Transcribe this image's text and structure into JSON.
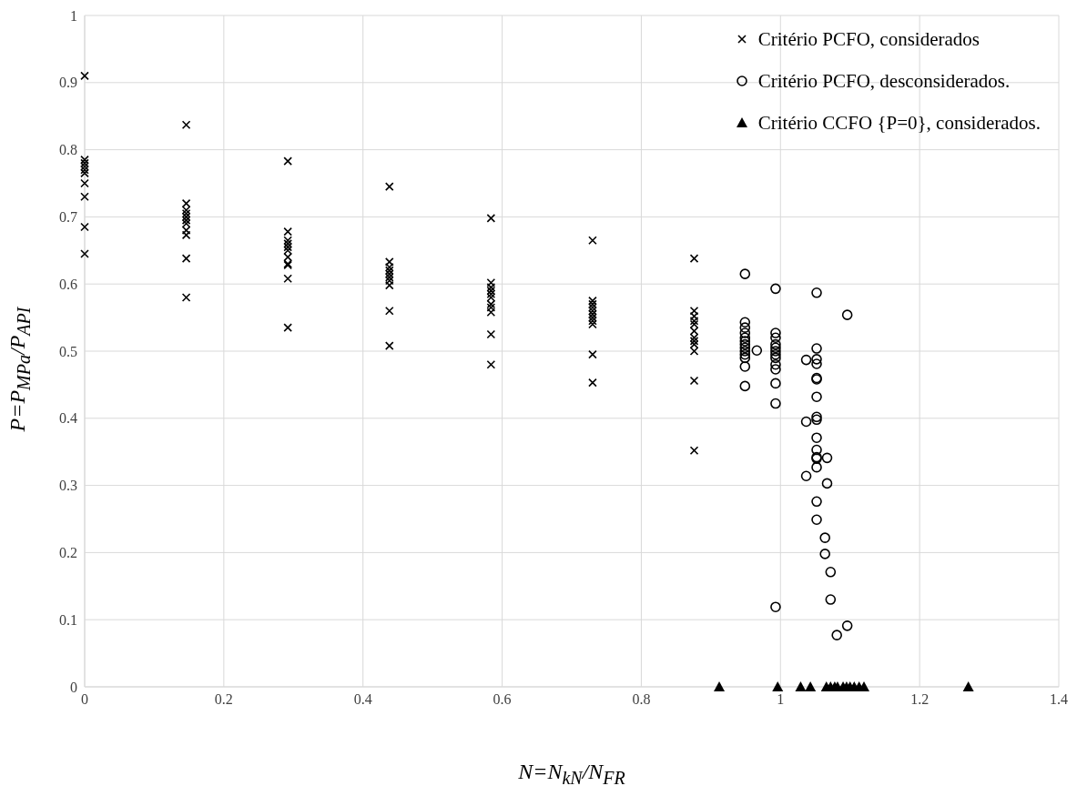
{
  "chart_data": {
    "type": "scatter",
    "xlabel": "N=N$_{kN}$/N$_{FR}$",
    "ylabel": "P=P$_{MPa}$/P$_{API}$",
    "xlim": [
      0,
      1.4
    ],
    "xticks": [
      0,
      0.2,
      0.4,
      0.6,
      0.8,
      1,
      1.2,
      1.4
    ],
    "ylim": [
      0,
      1
    ],
    "yticks": [
      0,
      0.1,
      0.2,
      0.3,
      0.4,
      0.5,
      0.6,
      0.7,
      0.8,
      0.9,
      1
    ],
    "grid": true,
    "legend": "top right",
    "series": [
      {
        "name": "Critério PCFO, considerados",
        "color": "#000000",
        "marker": "cross",
        "x": [
          0,
          0,
          0,
          0,
          0,
          0,
          0,
          0,
          0,
          0,
          0.146,
          0.146,
          0.146,
          0.146,
          0.146,
          0.146,
          0.146,
          0.146,
          0.146,
          0.146,
          0.146,
          0.292,
          0.292,
          0.292,
          0.292,
          0.292,
          0.292,
          0.292,
          0.292,
          0.292,
          0.292,
          0.292,
          0.438,
          0.438,
          0.438,
          0.438,
          0.438,
          0.438,
          0.438,
          0.438,
          0.438,
          0.438,
          0.584,
          0.584,
          0.584,
          0.584,
          0.584,
          0.584,
          0.584,
          0.584,
          0.584,
          0.584,
          0.584,
          0.73,
          0.73,
          0.73,
          0.73,
          0.73,
          0.73,
          0.73,
          0.73,
          0.73,
          0.73,
          0.73,
          0.876,
          0.876,
          0.876,
          0.876,
          0.876,
          0.876,
          0.876,
          0.876,
          0.876,
          0.876,
          0.876,
          0.876
        ],
        "values": [
          0.91,
          0.785,
          0.78,
          0.775,
          0.77,
          0.765,
          0.75,
          0.73,
          0.685,
          0.645,
          0.837,
          0.72,
          0.71,
          0.705,
          0.7,
          0.695,
          0.69,
          0.68,
          0.673,
          0.638,
          0.58,
          0.783,
          0.678,
          0.665,
          0.66,
          0.655,
          0.65,
          0.64,
          0.63,
          0.628,
          0.608,
          0.535,
          0.745,
          0.633,
          0.625,
          0.62,
          0.615,
          0.61,
          0.605,
          0.598,
          0.56,
          0.508,
          0.698,
          0.602,
          0.595,
          0.59,
          0.585,
          0.58,
          0.57,
          0.565,
          0.558,
          0.525,
          0.48,
          0.665,
          0.575,
          0.57,
          0.565,
          0.56,
          0.555,
          0.55,
          0.545,
          0.54,
          0.495,
          0.453,
          0.638,
          0.56,
          0.552,
          0.545,
          0.54,
          0.53,
          0.52,
          0.515,
          0.51,
          0.5,
          0.456,
          0.352
        ]
      },
      {
        "name": "Critério PCFO, desconsiderados.",
        "color": "#000000",
        "marker": "circle",
        "x": [
          0.949,
          0.949,
          0.949,
          0.949,
          0.949,
          0.949,
          0.949,
          0.949,
          0.949,
          0.949,
          0.949,
          0.949,
          0.949,
          0.966,
          0.993,
          0.993,
          0.993,
          0.993,
          0.993,
          0.993,
          0.993,
          0.993,
          0.993,
          0.993,
          0.993,
          0.993,
          0.993,
          1.052,
          1.052,
          1.052,
          1.052,
          1.052,
          1.052,
          1.052,
          1.052,
          1.052,
          1.052,
          1.052,
          1.052,
          1.052,
          1.052,
          1.052,
          1.052,
          1.037,
          1.037,
          1.037,
          1.067,
          1.067,
          1.096,
          1.096,
          1.064,
          1.064,
          1.072,
          1.072,
          1.081
        ],
        "values": [
          0.615,
          0.543,
          0.535,
          0.527,
          0.52,
          0.515,
          0.51,
          0.505,
          0.5,
          0.495,
          0.49,
          0.477,
          0.448,
          0.501,
          0.593,
          0.527,
          0.52,
          0.51,
          0.505,
          0.5,
          0.495,
          0.49,
          0.48,
          0.473,
          0.452,
          0.422,
          0.119,
          0.587,
          0.504,
          0.488,
          0.481,
          0.46,
          0.458,
          0.432,
          0.402,
          0.398,
          0.371,
          0.353,
          0.342,
          0.34,
          0.327,
          0.276,
          0.249,
          0.487,
          0.395,
          0.314,
          0.341,
          0.303,
          0.554,
          0.091,
          0.222,
          0.198,
          0.171,
          0.13,
          0.077
        ]
      },
      {
        "name": "Critério CCFO {P=0}, considerados.",
        "color": "#000000",
        "marker": "triangle",
        "x": [
          0.912,
          0.996,
          1.029,
          1.043,
          1.066,
          1.072,
          1.078,
          1.082,
          1.09,
          1.095,
          1.1,
          1.106,
          1.113,
          1.12,
          1.27
        ],
        "values": [
          0,
          0,
          0,
          0,
          0,
          0,
          0,
          0,
          0,
          0,
          0,
          0,
          0,
          0,
          0
        ]
      }
    ]
  }
}
